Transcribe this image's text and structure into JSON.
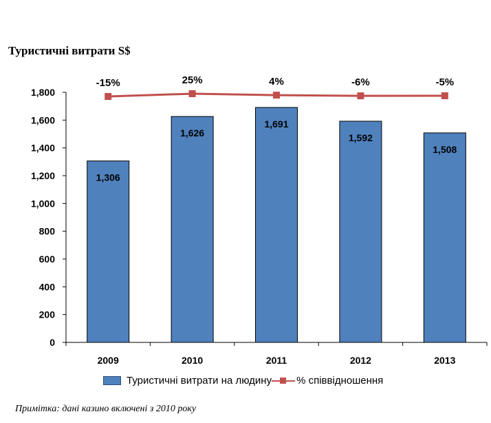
{
  "chart_data": {
    "type": "bar",
    "title": "Туристичні витрати S$",
    "categories": [
      "2009",
      "2010",
      "2011",
      "2012",
      "2013"
    ],
    "series": [
      {
        "name": "Туристичні витрати на людину",
        "type": "bar",
        "values": [
          1306,
          1626,
          1691,
          1592,
          1508
        ],
        "labels": [
          "1,306",
          "1,626",
          "1,691",
          "1,592",
          "1,508"
        ],
        "color": "#4f81bd"
      },
      {
        "name": "% співвідношення",
        "type": "line",
        "values": [
          -15,
          25,
          4,
          -6,
          -5
        ],
        "labels": [
          "-15%",
          "25%",
          "4%",
          "-6%",
          "-5%"
        ],
        "color": "#c0504d"
      }
    ],
    "y_ticks": [
      "0",
      "200",
      "400",
      "600",
      "800",
      "1,000",
      "1,200",
      "1,400",
      "1,600",
      "1,800"
    ],
    "ylim": [
      0,
      1800
    ],
    "grid": false,
    "legend_position": "bottom"
  },
  "note": "Примітка: дані казино включені з 2010 року"
}
